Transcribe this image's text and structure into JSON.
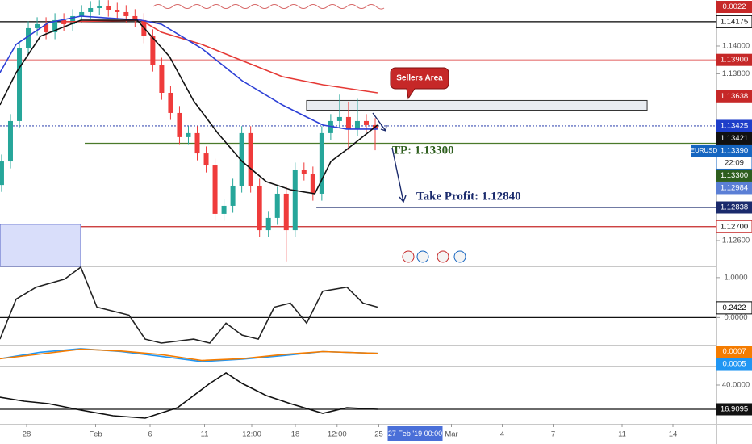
{
  "chart_data": [
    {
      "type": "candlestick",
      "xlim": [
        -1.467,
        38.0
      ],
      "ylim": [
        1.12414,
        1.14331
      ],
      "yticks": [
        {
          "value": 1.14,
          "label": "1.14000"
        },
        {
          "value": 1.138,
          "label": "1.13800"
        },
        {
          "value": 1.126,
          "label": "1.12600"
        }
      ],
      "xticks": [
        {
          "value": 0,
          "label": "28"
        },
        {
          "value": 3.8,
          "label": "Feb"
        },
        {
          "value": 6.8,
          "label": "6"
        },
        {
          "value": 9.8,
          "label": "11"
        },
        {
          "value": 12.4,
          "label": "12:00"
        },
        {
          "value": 14.8,
          "label": "18"
        },
        {
          "value": 17.1,
          "label": "12:00"
        },
        {
          "value": 19.4,
          "label": "25"
        },
        {
          "value": 23.4,
          "label": "Mar"
        },
        {
          "value": 26.2,
          "label": "4"
        },
        {
          "value": 29.0,
          "label": "7"
        },
        {
          "value": 32.8,
          "label": "11"
        },
        {
          "value": 35.6,
          "label": "14"
        }
      ],
      "cursor_label": {
        "value": 21.4,
        "label": "27 Feb '19   00:00",
        "color": "#4a6fd8"
      },
      "top_indicator": {
        "label": "0.0022",
        "color": "#c62828"
      },
      "up_color": "#26a69a",
      "down_color": "#ef3b3b",
      "x": [
        -1.38,
        -0.89,
        -0.4,
        0.09,
        0.58,
        1.07,
        1.56,
        2.05,
        2.54,
        3.03,
        3.52,
        4.01,
        4.5,
        4.99,
        5.48,
        5.97,
        6.46,
        6.95,
        7.44,
        7.93,
        8.42,
        8.91,
        9.4,
        9.89,
        10.38,
        10.87,
        11.36,
        11.85,
        12.34,
        12.83,
        13.32,
        13.81,
        14.3,
        14.79,
        15.28,
        15.77,
        16.26,
        16.75,
        17.24,
        17.73,
        18.22,
        18.71,
        19.2
      ],
      "open": [
        1.13,
        1.13169,
        1.1346,
        1.13983,
        1.14128,
        1.14157,
        1.14099,
        1.14186,
        1.14157,
        1.14215,
        1.14244,
        1.14273,
        1.14285,
        1.14261,
        1.14244,
        1.14215,
        1.14186,
        1.1407,
        1.13866,
        1.13663,
        1.13518,
        1.13344,
        1.13373,
        1.13227,
        1.1314,
        1.12792,
        1.1285,
        1.12995,
        1.13373,
        1.12995,
        1.12675,
        1.12763,
        1.12937,
        1.12675,
        1.13111,
        1.13082,
        1.12937,
        1.13373,
        1.1346,
        1.13489,
        1.13402,
        1.1346,
        1.13431
      ],
      "high": [
        1.13219,
        1.1351,
        1.14033,
        1.14178,
        1.14207,
        1.14207,
        1.14236,
        1.14236,
        1.14265,
        1.14294,
        1.14323,
        1.1433,
        1.1433,
        1.14311,
        1.14294,
        1.14265,
        1.14236,
        1.1412,
        1.13916,
        1.13713,
        1.13568,
        1.13423,
        1.13423,
        1.13277,
        1.1319,
        1.129,
        1.13045,
        1.13423,
        1.13423,
        1.13045,
        1.12813,
        1.12987,
        1.12987,
        1.13161,
        1.13161,
        1.13132,
        1.13423,
        1.1351,
        1.1365,
        1.136,
        1.1362,
        1.1351,
        1.13481
      ],
      "low": [
        1.1295,
        1.13119,
        1.1341,
        1.13933,
        1.14078,
        1.14049,
        1.14049,
        1.14107,
        1.14107,
        1.14165,
        1.14194,
        1.14223,
        1.14211,
        1.14194,
        1.14165,
        1.14136,
        1.1402,
        1.13816,
        1.13613,
        1.13468,
        1.13294,
        1.13294,
        1.13177,
        1.1309,
        1.12742,
        1.12742,
        1.128,
        1.12945,
        1.12945,
        1.12625,
        1.12625,
        1.12713,
        1.1245,
        1.12625,
        1.13032,
        1.12887,
        1.12887,
        1.13323,
        1.1341,
        1.1325,
        1.13352,
        1.13381,
        1.1325
      ],
      "close": [
        1.13169,
        1.1346,
        1.13983,
        1.14128,
        1.14157,
        1.14099,
        1.14186,
        1.14157,
        1.14215,
        1.14244,
        1.14273,
        1.14285,
        1.14261,
        1.14244,
        1.14215,
        1.14186,
        1.1407,
        1.13866,
        1.13663,
        1.13518,
        1.13344,
        1.13373,
        1.13227,
        1.1314,
        1.12792,
        1.1285,
        1.12995,
        1.13373,
        1.12995,
        1.12675,
        1.12763,
        1.12937,
        1.12675,
        1.13111,
        1.13082,
        1.12937,
        1.13373,
        1.1346,
        1.13489,
        1.13402,
        1.1346,
        1.13431,
        1.13402
      ],
      "series": [
        {
          "color": "#e53935",
          "x": [
            2.09,
            6.31,
            7.42,
            9.64,
            11.87,
            14.09,
            16.31,
            19.33
          ],
          "values": [
            1.14174,
            1.14186,
            1.14099,
            1.14012,
            1.13895,
            1.13779,
            1.13721,
            1.13663
          ]
        },
        {
          "color": "#2c3fd6",
          "x": [
            -1.47,
            -0.58,
            1.2,
            2.98,
            6.31,
            7.42,
            9.64,
            11.87,
            14.09,
            16.31,
            17.64,
            19.33
          ],
          "values": [
            1.13808,
            1.14012,
            1.14168,
            1.14215,
            1.14186,
            1.14157,
            1.13983,
            1.1375,
            1.13576,
            1.13431,
            1.13402,
            1.13402
          ]
        },
        {
          "color": "#111111",
          "x": [
            -1.47,
            -0.58,
            0.76,
            2.98,
            6.09,
            7.87,
            9.2,
            10.53,
            11.87,
            13.2,
            14.53,
            15.87,
            16.76,
            17.64,
            19.33
          ],
          "values": [
            1.13576,
            1.13808,
            1.1407,
            1.14186,
            1.14186,
            1.13924,
            1.13605,
            1.13373,
            1.13169,
            1.13024,
            1.12966,
            1.12937,
            1.13169,
            1.13256,
            1.13431
          ]
        }
      ],
      "zones": [
        {
          "x": [
            15.42,
            34.18
          ],
          "y": [
            1.13538,
            1.13608
          ],
          "color": "#e9ecf1",
          "border": "#333333"
        },
        {
          "x": [
            -1.467,
            2.98
          ],
          "y": [
            1.12414,
            1.12717
          ],
          "color": "#d9defa",
          "border": "#5562c4"
        }
      ],
      "price_labels": [
        {
          "value": 1.14175,
          "label": "1.14175",
          "bg": "#ffffff",
          "fg": "#000000",
          "border": "#000000",
          "line": "#000000"
        },
        {
          "value": 1.139,
          "label": "1.13900",
          "bg": "#c62828",
          "fg": "#ffffff",
          "line": "#e57373"
        },
        {
          "value": 1.13638,
          "label": "1.13638",
          "bg": "#c62828",
          "fg": "#ffffff"
        },
        {
          "value": 1.13425,
          "label": "1.13425",
          "bg": "#1e3ec9",
          "fg": "#ffffff",
          "line": "#3f51b5",
          "dash": true
        },
        {
          "value": 1.13421,
          "label": "1.13421",
          "bg": "#111111",
          "fg": "#ffffff"
        },
        {
          "value": 1.1339,
          "label": "1.13390",
          "bg": "#1565c0",
          "fg": "#ffffff",
          "tag": "EURUSD",
          "countdown": "22:09"
        },
        {
          "value": 1.133,
          "label": "1.13300",
          "bg": "#2e5e1e",
          "fg": "#ffffff",
          "line": "#4a7a2a",
          "from_x": 3.2
        },
        {
          "value": 1.12984,
          "label": "1.12984",
          "bg": "#5b7fd6",
          "fg": "#ffffff"
        },
        {
          "value": 1.12838,
          "label": "1.12838",
          "bg": "#1a2a6c",
          "fg": "#ffffff",
          "line": "#1a2a6c",
          "from_x": 15.96
        },
        {
          "value": 1.127,
          "label": "1.12700",
          "bg": "#ffffff",
          "fg": "#000000",
          "border": "#c62828",
          "line": "#c62828"
        }
      ],
      "annotations": {
        "callout": "Sellers Area",
        "tp": "TP: 1.13300",
        "take_profit": "Take Profit: 1.12840"
      }
    },
    {
      "type": "line",
      "ylim": [
        -0.68,
        1.26
      ],
      "yticks": [
        {
          "value": 1,
          "label": "1.0000"
        },
        {
          "value": 0,
          "label": "0.0000"
        }
      ],
      "baseline": 0,
      "series": [
        {
          "color": "#222222",
          "x": [
            -1.47,
            -0.58,
            0.53,
            2.09,
            2.98,
            3.87,
            5.64,
            6.53,
            7.42,
            9.2,
            10.09,
            10.98,
            11.87,
            12.76,
            13.64,
            14.53,
            15.42,
            16.31,
            17.64,
            18.53,
            19.33
          ],
          "values": [
            -0.54,
            0.46,
            0.76,
            0.96,
            1.26,
            0.26,
            0.06,
            -0.54,
            -0.64,
            -0.54,
            -0.64,
            -0.14,
            -0.44,
            -0.54,
            0.26,
            0.36,
            -0.14,
            0.66,
            0.76,
            0.36,
            0.26
          ]
        }
      ],
      "price_labels": [
        {
          "value": 0.2422,
          "label": "0.2422",
          "bg": "#ffffff",
          "fg": "#000000",
          "border": "#000000"
        }
      ]
    },
    {
      "type": "line",
      "ylim": [
        0.00046,
        0.00079
      ],
      "yticks": [],
      "series": [
        {
          "color": "#2196f3",
          "x": [
            -1.47,
            0.76,
            2.98,
            5.2,
            7.42,
            9.64,
            11.87,
            14.09,
            16.31,
            19.33
          ],
          "values": [
            0.00058,
            0.00069,
            0.00075,
            0.0007,
            0.00062,
            0.00053,
            0.00057,
            0.00063,
            0.0007,
            0.00067
          ]
        },
        {
          "color": "#f57c00",
          "x": [
            -1.47,
            0.76,
            2.98,
            5.2,
            7.42,
            9.64,
            11.87,
            14.09,
            16.31,
            19.33
          ],
          "values": [
            0.00058,
            0.00066,
            0.00074,
            0.00071,
            0.00065,
            0.00055,
            0.00058,
            0.00065,
            0.0007,
            0.00067
          ]
        }
      ],
      "price_labels": [
        {
          "value": 0.0007,
          "label": "0.0007",
          "bg": "#f57c00",
          "fg": "#ffffff"
        },
        {
          "value": 0.0005,
          "label": "0.0005",
          "bg": "#2196f3",
          "fg": "#ffffff"
        }
      ]
    },
    {
      "type": "line",
      "ylim": [
        3.05,
        56.93
      ],
      "yticks": [
        {
          "value": 40,
          "label": "40.0000"
        }
      ],
      "series": [
        {
          "color": "#111111",
          "x": [
            -1.47,
            -0.13,
            1.2,
            2.98,
            4.76,
            6.53,
            8.31,
            10.09,
            10.98,
            11.87,
            13.2,
            14.53,
            16.31,
            17.64,
            19.33
          ],
          "values": [
            28.45,
            24.61,
            22.3,
            16.14,
            10.75,
            8.44,
            18.45,
            41.54,
            51.55,
            41.54,
            29.99,
            22.3,
            13.06,
            18.45,
            16.91
          ]
        }
      ],
      "price_labels": [
        {
          "value": 16.9095,
          "label": "16.9095",
          "bg": "#111111",
          "fg": "#ffffff",
          "line": "#111111"
        }
      ]
    }
  ]
}
